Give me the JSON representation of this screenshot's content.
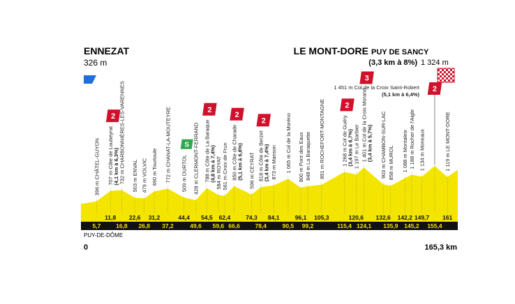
{
  "start": {
    "name": "ENNEZAT",
    "elevation": "326 m",
    "km": "0",
    "department": "PUY-DE-DÔME"
  },
  "finish": {
    "name": "LE MONT-DORE",
    "summit": "PUY DE SANCY",
    "climb": "(3,3 km à 8%)",
    "elevation": "1 324 m",
    "km": "165,3 km"
  },
  "waypoints": [
    {
      "label": "396 m CHÂTEL-GUYON",
      "km": "5,7"
    },
    {
      "label": "707 m Côte de Loubeyrat",
      "climb": "(4,1 km à 6,3%)",
      "km": "11,8",
      "category": "2"
    },
    {
      "label": "732 m CHARBONNIÈRES-LES-VARENNES",
      "km": "16,8"
    },
    {
      "label": "503 m ENVAL",
      "km": "22,6"
    },
    {
      "label": "479 m VOLVIC",
      "km": "26,8"
    },
    {
      "label": "690 m Tourtoule",
      "km": "31,2"
    },
    {
      "label": "772 m CHANAT-LA-MOUTEYRE",
      "km": "37,2"
    },
    {
      "label": "509 m DURTOL",
      "km": "44,4",
      "sprint": "S"
    },
    {
      "label": "428 m CLERMONT-FERRAND",
      "km": "49,6"
    },
    {
      "label": "788 m Côte de La Baraque",
      "climb": "(4,8 km à 7,4%)",
      "km": "54,5",
      "category": "2"
    },
    {
      "label": "584 m ROYAT",
      "km": "59,6"
    },
    {
      "label": "561 m Croix de Frun",
      "km": "62,4"
    },
    {
      "label": "850 m Côte de Charade",
      "climb": "(5,1 km à 6,8%)",
      "km": "66,6",
      "category": "2"
    },
    {
      "label": "596 m CEYRAT",
      "km": "74,3"
    },
    {
      "label": "818 m Côte de Berzet",
      "climb": "(3,4 km à 7,4%)",
      "km": "78,4",
      "category": "2"
    },
    {
      "label": "873 m Manson",
      "km": "84,1"
    },
    {
      "label": "1 065 m Col de la Moréno",
      "km": "90,5"
    },
    {
      "label": "800 m Pont des Eaux",
      "km": "96,1"
    },
    {
      "label": "848 m La Baraquette",
      "km": "99,2"
    },
    {
      "label": "891 m ROCHEFORT-MONTAGNE",
      "km": "105,3"
    },
    {
      "label": "1 268 m Col de Guéry",
      "climb": "(3,4 km à 6,7%)",
      "km": "115,4",
      "category": "2"
    },
    {
      "label": "1 197 m Le Barbier",
      "km": "120,6"
    },
    {
      "label": "1 401 m Col de la Croix Morand",
      "climb": "(3,4 km à 5,7%)",
      "km": "124,1",
      "category": "3"
    },
    {
      "label": "903 m CHAMBON-SUR-LAC",
      "km": "132,6"
    },
    {
      "label": "858 m MUROL",
      "km": "135,9"
    },
    {
      "label": "1 088 m Montaleix",
      "km": "142,2"
    },
    {
      "label": "1 188 m Rocher de l'Aigle",
      "km": "145,2"
    },
    {
      "label": "1 134 m Moneaux",
      "km": "149,7"
    },
    {
      "label": "1 451 m Col de la Croix Saint-Robert",
      "climb": "(5,1 km à 6,4%)",
      "km": "155,4",
      "category": "2"
    },
    {
      "label": "1 119 m LE MONT-DORE",
      "km": "161"
    }
  ]
}
